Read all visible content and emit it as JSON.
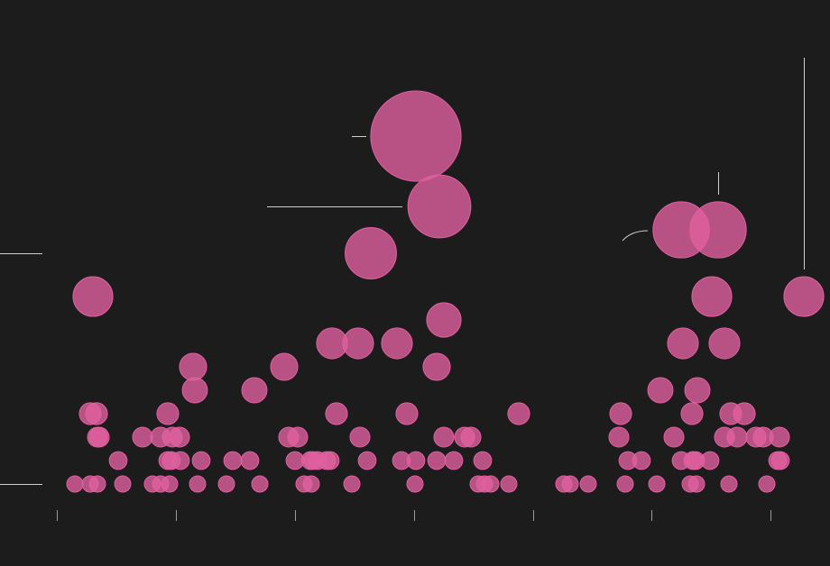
{
  "chart_data": {
    "type": "bubble",
    "color": "#e0609f",
    "xlim": [
      0,
      920
    ],
    "ylim": [
      0,
      628
    ],
    "xticks": [
      63,
      195,
      327,
      459,
      591,
      722,
      854
    ],
    "x": [
      83,
      100,
      108,
      136,
      169,
      178,
      188,
      219,
      251,
      288,
      337,
      345,
      390,
      460,
      530,
      537,
      544,
      564,
      625,
      632,
      652,
      693,
      728,
      765,
      772,
      808,
      850,
      131,
      186,
      190,
      200,
      223,
      258,
      277,
      327,
      344,
      347,
      352,
      362,
      366,
      407,
      445,
      461,
      484,
      503,
      535,
      696,
      711,
      755,
      768,
      771,
      787,
      862,
      865,
      108,
      110,
      158,
      178,
      191,
      199,
      320,
      330,
      399,
      492,
      515,
      522,
      686,
      747,
      803,
      817,
      838,
      846,
      864,
      100,
      107,
      186,
      373,
      451,
      575,
      688,
      767,
      810,
      825,
      216,
      282,
      732,
      773,
      214,
      315,
      484,
      368,
      397,
      440,
      757,
      803,
      492,
      103,
      789,
      891,
      411,
      755,
      796,
      487,
      461
    ],
    "y": [
      91,
      91,
      91,
      91,
      91,
      91,
      91,
      91,
      91,
      91,
      91,
      91,
      91,
      91,
      91,
      91,
      91,
      91,
      91,
      91,
      91,
      91,
      91,
      91,
      91,
      91,
      91,
      117,
      117,
      117,
      117,
      117,
      117,
      117,
      117,
      117,
      117,
      117,
      117,
      117,
      117,
      117,
      117,
      117,
      117,
      117,
      117,
      117,
      117,
      117,
      117,
      117,
      117,
      117,
      143,
      143,
      143,
      143,
      143,
      143,
      143,
      143,
      143,
      143,
      143,
      143,
      143,
      143,
      143,
      143,
      143,
      143,
      143,
      169,
      169,
      169,
      169,
      169,
      169,
      169,
      169,
      169,
      169,
      195,
      195,
      195,
      195,
      221,
      221,
      221,
      247,
      247,
      247,
      247,
      247,
      273,
      299,
      299,
      299,
      347,
      373,
      373,
      399,
      477
    ],
    "size": [
      1,
      1,
      1,
      1,
      1,
      1,
      1,
      1,
      1,
      1,
      1,
      1,
      1,
      1,
      1,
      1,
      1,
      1,
      1,
      1,
      1,
      1,
      1,
      1,
      1,
      1,
      1,
      1.2,
      1.2,
      1.2,
      1.2,
      1.2,
      1.2,
      1.2,
      1.2,
      1.2,
      1.2,
      1.2,
      1.2,
      1.2,
      1.2,
      1.2,
      1.2,
      1.2,
      1.2,
      1.2,
      1.2,
      1.2,
      1.2,
      1.2,
      1.2,
      1.2,
      1.2,
      1.2,
      1.5,
      1.5,
      1.5,
      1.5,
      1.5,
      1.5,
      1.5,
      1.5,
      1.5,
      1.5,
      1.5,
      1.5,
      1.5,
      1.5,
      1.5,
      1.5,
      1.5,
      1.5,
      1.5,
      1.8,
      1.8,
      1.8,
      1.8,
      1.8,
      1.8,
      1.8,
      1.8,
      1.8,
      1.8,
      2.4,
      2.4,
      2.4,
      2.4,
      2.8,
      2.8,
      2.8,
      3.6,
      3.6,
      3.6,
      3.6,
      3.6,
      4.5,
      6,
      6,
      6,
      10,
      12,
      12,
      15,
      31
    ]
  }
}
